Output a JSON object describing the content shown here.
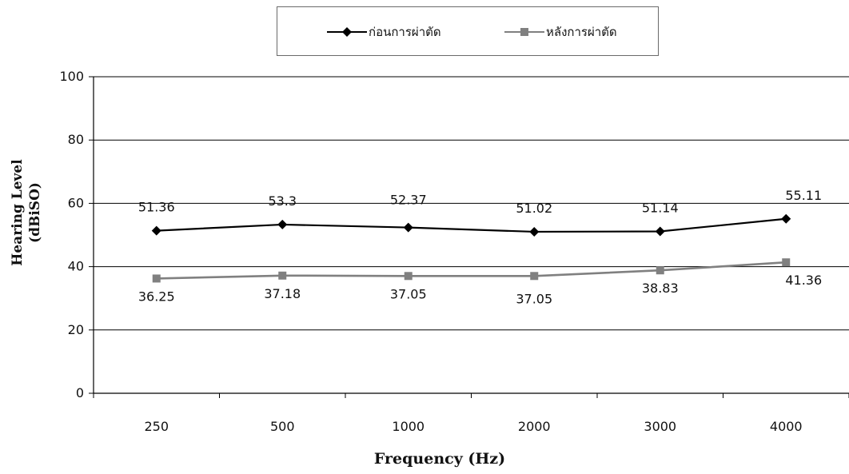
{
  "chart_data": {
    "type": "line",
    "categories": [
      "250",
      "500",
      "1000",
      "2000",
      "3000",
      "4000"
    ],
    "series": [
      {
        "name": "ก่อนการผ่าตัด",
        "values": [
          51.36,
          53.3,
          52.37,
          51.02,
          51.14,
          55.11
        ],
        "color": "#000000",
        "marker": "diamond"
      },
      {
        "name": "หลังการผ่าตัด",
        "values": [
          36.25,
          37.18,
          37.05,
          37.05,
          38.83,
          41.36
        ],
        "color": "#808080",
        "marker": "square"
      }
    ],
    "data_labels": {
      "before": [
        "51.36",
        "53.3",
        "52.37",
        "51.02",
        "51.14",
        "55.11"
      ],
      "after": [
        "36.25",
        "37.18",
        "37.05",
        "37.05",
        "38.83",
        "41.36"
      ]
    },
    "y_ticks": [
      "0",
      "20",
      "40",
      "60",
      "80",
      "100"
    ],
    "xlabel": "Frequency (Hz)",
    "ylabel": "Hearing Level (dBiSO)",
    "ylim": [
      0,
      100
    ],
    "grid": "horizontal",
    "legend_position": "top"
  }
}
